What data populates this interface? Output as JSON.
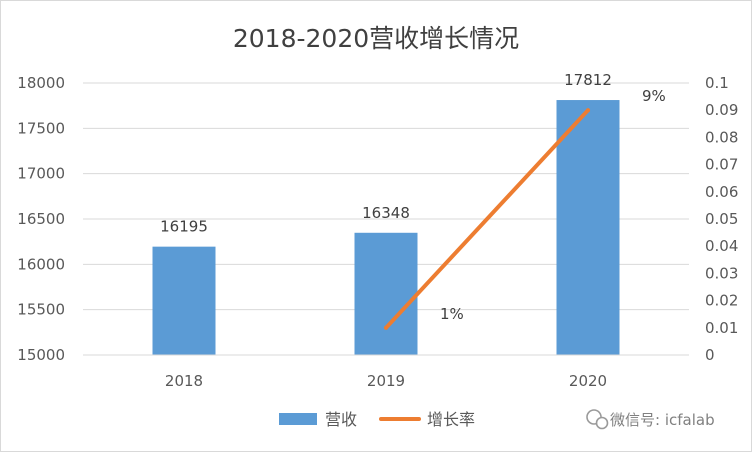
{
  "chart_data": {
    "type": "bar",
    "title": "2018-2020营收增长情况",
    "categories": [
      "2018",
      "2019",
      "2020"
    ],
    "series": [
      {
        "name": "营收",
        "type": "bar",
        "axis": "left",
        "color": "#5b9bd5",
        "values": [
          16195,
          16348,
          17812
        ],
        "labels": [
          "16195",
          "16348",
          "17812"
        ]
      },
      {
        "name": "增长率",
        "type": "line",
        "axis": "right",
        "color": "#ed7d31",
        "values": [
          null,
          0.01,
          0.09
        ],
        "labels": [
          "",
          "1%",
          "9%"
        ]
      }
    ],
    "y_left": {
      "min": 15000,
      "max": 18000,
      "ticks": [
        "15000",
        "15500",
        "16000",
        "16500",
        "17000",
        "17500",
        "18000"
      ]
    },
    "y_right": {
      "min": 0,
      "max": 0.1,
      "ticks": [
        "0",
        "0.01",
        "0.02",
        "0.03",
        "0.04",
        "0.05",
        "0.06",
        "0.07",
        "0.08",
        "0.09",
        "0.1"
      ]
    },
    "grid": true,
    "legend": "bottom"
  },
  "watermark": {
    "icon": "wechat-icon",
    "text": "微信号: icfalab"
  }
}
